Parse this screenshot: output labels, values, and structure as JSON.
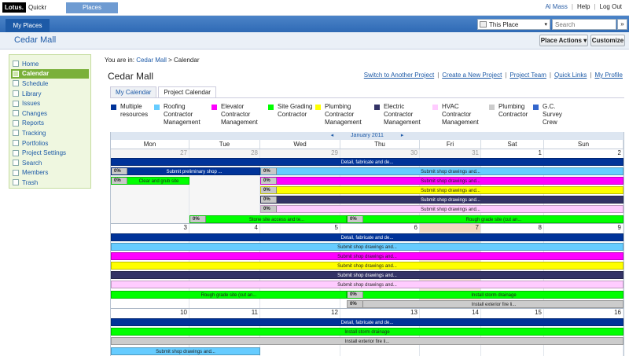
{
  "top": {
    "logo_lotus": "Lotus.",
    "logo_quickr": "Quickr",
    "places_tab": "Places",
    "user": "Al Mass",
    "help": "Help",
    "logout": "Log Out"
  },
  "nav": {
    "my_places": "My Places",
    "scope": "This Place",
    "search_placeholder": "Search",
    "search_btn": "»"
  },
  "title": {
    "place": "Cedar Mall",
    "place_actions": "Place Actions ▾",
    "customize": "Customize"
  },
  "sidebar": {
    "items": [
      {
        "label": "Home"
      },
      {
        "label": "Calendar"
      },
      {
        "label": "Schedule"
      },
      {
        "label": "Library"
      },
      {
        "label": "Issues"
      },
      {
        "label": "Changes"
      },
      {
        "label": "Reports"
      },
      {
        "label": "Tracking"
      },
      {
        "label": "Portfolios"
      },
      {
        "label": "Project Settings"
      },
      {
        "label": "Search"
      },
      {
        "label": "Members"
      },
      {
        "label": "Trash"
      }
    ]
  },
  "breadcrumb": {
    "prefix": "You are in:",
    "place": "Cedar Mall",
    "sep": ">",
    "page": "Calendar"
  },
  "main": {
    "title": "Cedar Mall",
    "actions": [
      "Switch to Another Project",
      "Create a New Project",
      "Project Team",
      "Quick Links",
      "My Profile"
    ],
    "tabs": [
      "My Calendar",
      "Project Calendar"
    ]
  },
  "legend": [
    {
      "label1": "Multiple",
      "label2": "resources",
      "label3": "",
      "color": "#003399"
    },
    {
      "label1": "Roofing",
      "label2": "Contractor",
      "label3": "Management",
      "color": "#66ccff"
    },
    {
      "label1": "Elevator",
      "label2": "Contractor",
      "label3": "Management",
      "color": "#ff00ff"
    },
    {
      "label1": "Site Grading",
      "label2": "Contractor",
      "label3": "",
      "color": "#00ff00"
    },
    {
      "label1": "Plumbing",
      "label2": "Contractor",
      "label3": "Management",
      "color": "#ffff00"
    },
    {
      "label1": "Electric",
      "label2": "Contractor",
      "label3": "Management",
      "color": "#333366"
    },
    {
      "label1": "HVAC",
      "label2": "Contractor",
      "label3": "Management",
      "color": "#ffccff"
    },
    {
      "label1": "Plumbing",
      "label2": "Contractor",
      "label3": "",
      "color": "#cccccc"
    },
    {
      "label1": "G.C.",
      "label2": "Survey",
      "label3": "Crew",
      "color": "#3366cc"
    }
  ],
  "calendar": {
    "prev": "◂",
    "month": "January 2011",
    "next": "▸",
    "days": [
      "Mon",
      "Tue",
      "Wed",
      "Thu",
      "Fri",
      "Sat",
      "Sun"
    ],
    "weeks": [
      {
        "nums": [
          "27",
          "28",
          "29",
          "30",
          "31",
          "1",
          "2"
        ],
        "other": [
          true,
          true,
          true,
          true,
          true,
          false,
          false
        ]
      },
      {
        "nums": [
          "3",
          "4",
          "5",
          "6",
          "7",
          "8",
          "9"
        ],
        "other": [
          false,
          false,
          false,
          false,
          false,
          false,
          false
        ]
      },
      {
        "nums": [
          "10",
          "11",
          "12",
          "13",
          "14",
          "15",
          "16"
        ],
        "other": [
          false,
          false,
          false,
          false,
          false,
          false,
          false
        ]
      }
    ],
    "today_week": 1,
    "today_day": 4,
    "pct": "0%",
    "tasks": {
      "detail": "Detail, fabricate and de...",
      "prelim": "Submit preliminary shop ...",
      "shop": "Submit shop drawings and...",
      "clear": "Clear and grub site",
      "stone": "Stone site access and te...",
      "rough": "Rough grade site (cut an...",
      "storm": "Install storm drainage",
      "fire": "Install exterior fire li..."
    }
  }
}
